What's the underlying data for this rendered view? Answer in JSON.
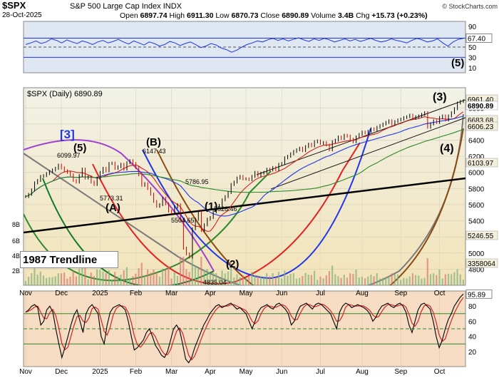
{
  "header": {
    "title": "$SPX",
    "subtitle": "S&P 500 Large Cap Index",
    "exchange": "INDX",
    "copyright": "© StockCharts.com",
    "date": "28-Oct-2025",
    "open_label": "Open",
    "open": "6897.74",
    "high_label": "High",
    "high": "6911.30",
    "low_label": "Low",
    "low": "6870.73",
    "close_label": "Close",
    "close": "6890.89",
    "volume_label": "Volume",
    "volume": "3.4B",
    "chg_label": "Chg",
    "chg": "+15.73 (+0.23%)"
  },
  "colors": {
    "price_bg": "#f6efc8",
    "upper_bg": "#dfe7f3",
    "rsi_bg": "#f5dcc2",
    "candle": "#000000",
    "sma50": "#1f36e8",
    "sma200": "#d22222",
    "green_ma": "#2a8a2a"
  },
  "chart_data": [
    {
      "type": "line",
      "panel": "upper-oscillator",
      "ylim": [
        0,
        100
      ],
      "y_ticks": [
        "90",
        "70",
        "50",
        "30",
        "10"
      ],
      "levels": {
        "upper": 67.4,
        "mid": 50,
        "lower": 30
      },
      "current_value": "67.40",
      "wave_label": "(5)",
      "values": [
        55,
        58,
        62,
        57,
        60,
        66,
        63,
        58,
        64,
        60,
        57,
        62,
        59,
        55,
        60,
        63,
        58,
        61,
        65,
        60,
        56,
        62,
        58,
        54,
        60,
        57,
        52,
        55,
        61,
        58,
        53,
        57,
        60,
        55,
        49,
        52,
        57,
        54,
        48,
        45,
        40,
        44,
        50,
        55,
        58,
        62,
        60,
        64,
        67,
        63,
        66,
        62,
        65,
        68,
        64,
        61,
        66,
        63,
        67,
        64,
        60,
        63,
        66,
        62,
        65,
        61,
        64,
        67,
        63,
        60,
        62,
        66,
        63,
        61,
        58,
        63,
        67,
        64,
        60,
        62,
        66,
        58,
        52,
        60,
        65,
        67
      ]
    },
    {
      "type": "candlestick",
      "panel": "price",
      "legend_label": "$SPX (Daily) 6890.89",
      "ylim": [
        4600,
        7050
      ],
      "y_ticks": [
        4800,
        5000,
        5200,
        5400,
        5600,
        5800,
        6000,
        6200,
        6400,
        6600,
        6800
      ],
      "x_labels": [
        "Nov",
        "Dec",
        "2025",
        "Feb",
        "Mar",
        "Apr",
        "May",
        "Jun",
        "Jul",
        "Aug",
        "Sep",
        "Oct"
      ],
      "right_labels": [
        "6961.40",
        "6890.89",
        "6683.68",
        "6606.23",
        "6103.97",
        "5246.55",
        "3358064"
      ],
      "volume_label": "3358064",
      "annotations": [
        "[3]",
        "(5)",
        "6099.97",
        "(A)",
        "5773.31",
        "(B)",
        "6147.43",
        "5786.95",
        "5504.65",
        "(1)",
        "5528.46",
        "(2)",
        "4835.04",
        "(3)",
        "(4)",
        "1987 Trendline"
      ],
      "left_partial_labels": [
        "8B",
        "6B",
        "4B",
        "2B"
      ],
      "closes": [
        5700,
        5728,
        5782,
        5870,
        5900,
        5950,
        5960,
        5985,
        6010,
        6030,
        6050,
        6090,
        6055,
        6020,
        6000,
        5970,
        5900,
        5880,
        5960,
        6040,
        5930,
        5945,
        5880,
        5850,
        5930,
        6000,
        6050,
        6020,
        6110,
        6115,
        6050,
        6070,
        6100,
        6040,
        6120,
        6145,
        6110,
        6060,
        5970,
        5840,
        5860,
        5800,
        5730,
        5640,
        5580,
        5600,
        5680,
        5610,
        5520,
        5500,
        5570,
        5600,
        5410,
        5060,
        4990,
        4950,
        5300,
        5420,
        5510,
        5280,
        5350,
        5420,
        5440,
        5510,
        5570,
        5590,
        5660,
        5700,
        5750,
        5850,
        5880,
        5930,
        5950,
        5920,
        5920,
        5910,
        5950,
        6000,
        5960,
        5990,
        6000,
        6040,
        6030,
        6060,
        6030,
        6100,
        6110,
        6180,
        6200,
        6230,
        6260,
        6280,
        6300,
        6270,
        6320,
        6350,
        6330,
        6380,
        6390,
        6360,
        6370,
        6340,
        6280,
        6380,
        6400,
        6440,
        6420,
        6460,
        6450,
        6410,
        6380,
        6440,
        6470,
        6500,
        6490,
        6510,
        6540,
        6530,
        6560,
        6580,
        6600,
        6620,
        6640,
        6600,
        6630,
        6650,
        6660,
        6680,
        6690,
        6710,
        6670,
        6690,
        6700,
        6720,
        6740,
        6560,
        6600,
        6640,
        6620,
        6680,
        6700,
        6650,
        6700,
        6740,
        6790,
        6860,
        6880,
        6891
      ]
    },
    {
      "type": "line",
      "panel": "rsi",
      "ylim": [
        0,
        100
      ],
      "y_ticks": [
        "80",
        "60",
        "40",
        "20"
      ],
      "current_value": "95.89",
      "values": [
        72,
        75,
        80,
        82,
        78,
        55,
        60,
        75,
        80,
        72,
        50,
        30,
        12,
        25,
        40,
        55,
        68,
        75,
        60,
        45,
        70,
        78,
        82,
        76,
        70,
        40,
        30,
        55,
        72,
        78,
        80,
        82,
        79,
        75,
        60,
        40,
        22,
        25,
        30,
        35,
        45,
        50,
        40,
        28,
        22,
        15,
        12,
        20,
        35,
        50,
        55,
        48,
        30,
        10,
        5,
        12,
        25,
        35,
        45,
        55,
        62,
        70,
        75,
        80,
        82,
        78,
        80,
        82,
        84,
        80,
        76,
        78,
        74,
        70,
        60,
        50,
        60,
        72,
        78,
        80,
        82,
        78,
        76,
        82,
        84,
        80,
        76,
        70,
        55,
        60,
        72,
        80,
        82,
        84,
        80,
        76,
        82,
        84,
        82,
        78,
        74,
        70,
        60,
        50,
        72,
        80,
        84,
        82,
        78,
        80,
        82,
        80,
        78,
        75,
        70,
        60,
        65,
        74,
        80,
        82,
        84,
        80,
        78,
        82,
        84,
        80,
        72,
        55,
        45,
        60,
        75,
        82,
        84,
        80,
        76,
        60,
        40,
        25,
        35,
        50,
        62,
        70,
        80,
        86,
        92,
        96
      ]
    }
  ]
}
